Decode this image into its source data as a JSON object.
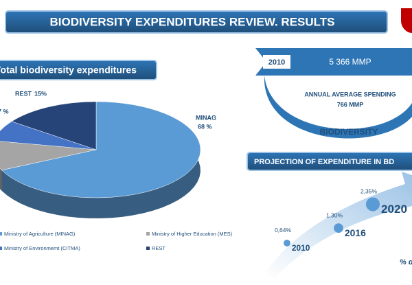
{
  "header": {
    "title": "BIODIVERSITY EXPENDITURES REVIEW. RESULTS"
  },
  "pie": {
    "type": "pie",
    "title": "Total biodiversity expenditures",
    "slices": [
      {
        "name": "Ministry of Agriculture (MINAG)",
        "pie_label": "MINAG",
        "value": 68,
        "value_label": "68 %",
        "color": "#5b9bd5"
      },
      {
        "name": "Ministry of Higher Education (MES)",
        "value": 10,
        "color": "#a5a5a5"
      },
      {
        "name": "Ministry of Environmemt (CITMA)",
        "value": 7,
        "value_label": "7 %",
        "color": "#4472c4"
      },
      {
        "name": "REST",
        "pie_label": "REST",
        "value": 15,
        "value_label": "15%",
        "color": "#264478"
      }
    ]
  },
  "spending": {
    "start_year": "2010",
    "total": "5 366 MMP",
    "average_label": "ANNUAL AVERAGE SPENDING",
    "average": "766 MMP",
    "caption": "BIODIVERSITY"
  },
  "projection": {
    "type": "scatter",
    "title": "PROJECTION OF EXPENDITURE IN BD",
    "categories": [
      "2010",
      "2016",
      "2020"
    ],
    "values": [
      0.64,
      1.3,
      2.35
    ],
    "value_labels": [
      "0,64%",
      "1,30%",
      "2,35%"
    ],
    "color": "#5b9bd5",
    "note": "% de"
  }
}
